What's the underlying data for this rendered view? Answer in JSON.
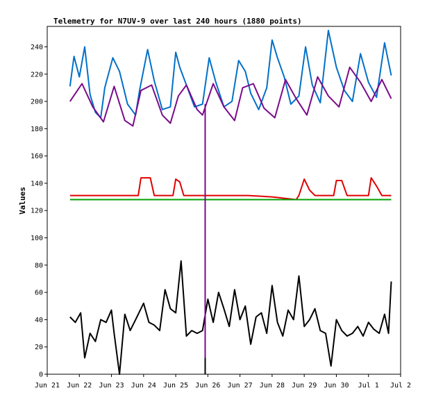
{
  "chart_data": {
    "type": "line",
    "title": "Telemetry for N7UV-9 over last 240 hours (1880 points)",
    "xlabel": "",
    "ylabel": "Values",
    "xlim": [
      "2024-06-21",
      "2024-07-02"
    ],
    "ylim": [
      0,
      255
    ],
    "x_ticks": [
      "Jun 21",
      "Jun 22",
      "Jun 23",
      "Jun 24",
      "Jun 25",
      "Jun 26",
      "Jun 27",
      "Jun 28",
      "Jun 29",
      "Jun 30",
      "Jul 1",
      "Jul 2"
    ],
    "y_ticks": [
      0,
      20,
      40,
      60,
      80,
      100,
      120,
      140,
      160,
      180,
      200,
      220,
      240
    ],
    "grid": false,
    "legend": "none",
    "series": [
      {
        "color": "#0070c8",
        "x": [
          "2024-06-21T17:00",
          "2024-06-21T20:00",
          "2024-06-22T00:00",
          "2024-06-22T04:00",
          "2024-06-22T08:00",
          "2024-06-22T12:00",
          "2024-06-22T16:00",
          "2024-06-22T19:00",
          "2024-06-23T01:00",
          "2024-06-23T06:00",
          "2024-06-23T12:00",
          "2024-06-23T18:00",
          "2024-06-23T21:00",
          "2024-06-24T03:00",
          "2024-06-24T08:00",
          "2024-06-24T14:00",
          "2024-06-24T20:00",
          "2024-06-25T00:00",
          "2024-06-25T03:00",
          "2024-06-25T08:00",
          "2024-06-25T14:00",
          "2024-06-25T20:00",
          "2024-06-26T01:00",
          "2024-06-26T06:00",
          "2024-06-26T12:00",
          "2024-06-26T18:00",
          "2024-06-26T23:00",
          "2024-06-27T04:00",
          "2024-06-27T08:00",
          "2024-06-27T14:00",
          "2024-06-27T20:00",
          "2024-06-28T00:00",
          "2024-06-28T04:00",
          "2024-06-28T09:00",
          "2024-06-28T14:00",
          "2024-06-28T20:00",
          "2024-06-29T01:00",
          "2024-06-29T06:00",
          "2024-06-29T12:00",
          "2024-06-29T18:00",
          "2024-06-30T00:00",
          "2024-06-30T06:00",
          "2024-06-30T12:00",
          "2024-06-30T18:00",
          "2024-07-01T00:00",
          "2024-07-01T06:00",
          "2024-07-01T12:00",
          "2024-07-01T17:00"
        ],
        "values": [
          211,
          233,
          218,
          240,
          205,
          192,
          188,
          210,
          232,
          222,
          198,
          190,
          208,
          238,
          215,
          194,
          196,
          236,
          225,
          212,
          196,
          198,
          232,
          214,
          196,
          200,
          230,
          222,
          206,
          194,
          210,
          245,
          232,
          218,
          198,
          204,
          240,
          212,
          199,
          252,
          225,
          208,
          200,
          235,
          214,
          203,
          243,
          219
        ]
      },
      {
        "color": "#7a0a8a",
        "x": [
          "2024-06-21T17:00",
          "2024-06-22T02:00",
          "2024-06-22T10:00",
          "2024-06-22T18:00",
          "2024-06-23T02:00",
          "2024-06-23T10:00",
          "2024-06-23T16:00",
          "2024-06-23T22:00",
          "2024-06-24T06:00",
          "2024-06-24T14:00",
          "2024-06-24T20:00",
          "2024-06-25T02:00",
          "2024-06-25T08:00",
          "2024-06-25T16:00",
          "2024-06-25T20:00",
          "2024-06-26T04:00",
          "2024-06-26T12:00",
          "2024-06-26T20:00",
          "2024-06-27T02:00",
          "2024-06-27T10:00",
          "2024-06-27T18:00",
          "2024-06-28T02:00",
          "2024-06-28T10:00",
          "2024-06-28T18:00",
          "2024-06-29T02:00",
          "2024-06-29T10:00",
          "2024-06-29T18:00",
          "2024-06-30T02:00",
          "2024-06-30T10:00",
          "2024-06-30T18:00",
          "2024-07-01T02:00",
          "2024-07-01T10:00",
          "2024-07-01T17:00"
        ],
        "values": [
          200,
          213,
          196,
          185,
          211,
          186,
          182,
          208,
          212,
          190,
          184,
          204,
          212,
          194,
          190,
          213,
          196,
          186,
          210,
          213,
          195,
          188,
          216,
          202,
          190,
          218,
          204,
          196,
          225,
          214,
          200,
          216,
          202
        ]
      },
      {
        "color": "#e00000",
        "x": [
          "2024-06-21T17:00",
          "2024-06-22T08:00",
          "2024-06-23T12:00",
          "2024-06-23T20:00",
          "2024-06-23T22:00",
          "2024-06-24T05:00",
          "2024-06-24T08:00",
          "2024-06-24T22:00",
          "2024-06-25T00:00",
          "2024-06-25T03:00",
          "2024-06-25T06:00",
          "2024-06-26T06:00",
          "2024-06-27T06:00",
          "2024-06-28T00:00",
          "2024-06-28T18:00",
          "2024-06-28T20:00",
          "2024-06-29T00:00",
          "2024-06-29T04:00",
          "2024-06-29T08:00",
          "2024-06-29T22:00",
          "2024-06-30T00:00",
          "2024-06-30T04:00",
          "2024-06-30T08:00",
          "2024-07-01T00:00",
          "2024-07-01T02:00",
          "2024-07-01T06:00",
          "2024-07-01T10:00",
          "2024-07-01T17:00"
        ],
        "values": [
          131,
          131,
          131,
          131,
          144,
          144,
          131,
          131,
          143,
          141,
          131,
          131,
          131,
          130,
          128,
          131,
          143,
          135,
          131,
          131,
          142,
          142,
          131,
          131,
          144,
          138,
          131,
          131
        ]
      },
      {
        "color": "#00a000",
        "x": [
          "2024-06-21T17:00",
          "2024-07-01T17:00"
        ],
        "values": [
          128,
          128
        ]
      },
      {
        "color": "#000000",
        "x": [
          "2024-06-21T17:00",
          "2024-06-21T21:00",
          "2024-06-22T01:00",
          "2024-06-22T04:00",
          "2024-06-22T08:00",
          "2024-06-22T12:00",
          "2024-06-22T16:00",
          "2024-06-22T20:00",
          "2024-06-23T00:00",
          "2024-06-23T02:00",
          "2024-06-23T06:00",
          "2024-06-23T10:00",
          "2024-06-23T14:00",
          "2024-06-23T18:00",
          "2024-06-24T00:00",
          "2024-06-24T04:00",
          "2024-06-24T08:00",
          "2024-06-24T12:00",
          "2024-06-24T16:00",
          "2024-06-24T20:00",
          "2024-06-25T00:00",
          "2024-06-25T04:00",
          "2024-06-25T08:00",
          "2024-06-25T12:00",
          "2024-06-25T16:00",
          "2024-06-25T20:00",
          "2024-06-26T00:00",
          "2024-06-26T04:00",
          "2024-06-26T08:00",
          "2024-06-26T12:00",
          "2024-06-26T16:00",
          "2024-06-26T20:00",
          "2024-06-27T00:00",
          "2024-06-27T04:00",
          "2024-06-27T08:00",
          "2024-06-27T12:00",
          "2024-06-27T16:00",
          "2024-06-27T20:00",
          "2024-06-28T00:00",
          "2024-06-28T04:00",
          "2024-06-28T08:00",
          "2024-06-28T12:00",
          "2024-06-28T16:00",
          "2024-06-28T20:00",
          "2024-06-29T00:00",
          "2024-06-29T04:00",
          "2024-06-29T08:00",
          "2024-06-29T12:00",
          "2024-06-29T16:00",
          "2024-06-29T20:00",
          "2024-06-30T00:00",
          "2024-06-30T04:00",
          "2024-06-30T08:00",
          "2024-06-30T12:00",
          "2024-06-30T16:00",
          "2024-06-30T20:00",
          "2024-07-01T00:00",
          "2024-07-01T04:00",
          "2024-07-01T08:00",
          "2024-07-01T12:00",
          "2024-07-01T15:00",
          "2024-07-01T17:00"
        ],
        "values": [
          42,
          38,
          45,
          12,
          30,
          24,
          40,
          38,
          47,
          30,
          0,
          44,
          32,
          40,
          52,
          38,
          36,
          32,
          62,
          48,
          45,
          83,
          28,
          32,
          30,
          32,
          55,
          38,
          60,
          48,
          35,
          62,
          40,
          50,
          22,
          42,
          45,
          30,
          65,
          38,
          28,
          47,
          40,
          72,
          35,
          40,
          48,
          32,
          30,
          6,
          40,
          32,
          28,
          30,
          35,
          28,
          38,
          33,
          30,
          44,
          30,
          68
        ]
      },
      {
        "color": "#7a0a8a",
        "x": [
          "2024-06-25T22:00",
          "2024-06-25T22:00"
        ],
        "values": [
          0,
          198
        ]
      },
      {
        "color": "#000000",
        "x": [
          "2024-06-25T22:00",
          "2024-06-25T22:00"
        ],
        "values": [
          0,
          12
        ]
      }
    ]
  }
}
